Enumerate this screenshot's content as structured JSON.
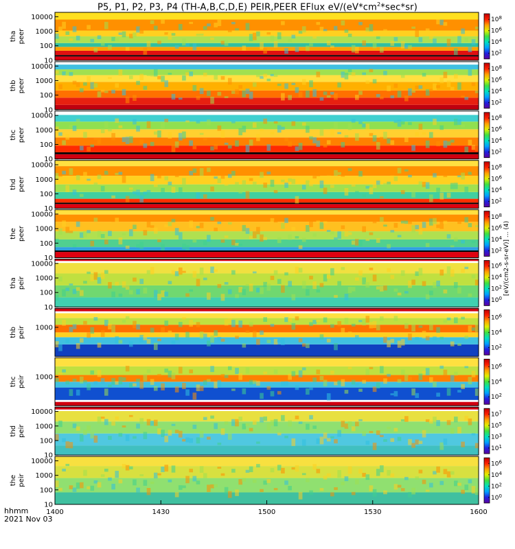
{
  "header": {
    "title": "P5, P1, P2, P3, P4 (TH-A,B,C,D,E) PEIR,PEER EFlux eV/(eV*cm",
    "title_sup": "2",
    "title_tail": "*sec*sr)"
  },
  "footer": {
    "time_format": "hhmm",
    "date": "2021 Nov 03"
  },
  "colorbar_unit": "[eV/(cm2-s-sr-eV)] ... (4)",
  "chart_data": {
    "type": "heatmap",
    "title": "P5, P1, P2, P3, P4 (TH-A,B,C,D,E) PEIR,PEER EFlux eV/(eV*cm2*sec*sr)",
    "x_axis": {
      "ticks": [
        "1400",
        "1430",
        "1500",
        "1530",
        "1600"
      ],
      "range": [
        "1400",
        "1600"
      ]
    },
    "y_scale": "log",
    "colormap": "rainbow (purple-blue-cyan-green-yellow-orange-red)",
    "panels": [
      {
        "probe": "tha",
        "species": "peer",
        "label": [
          "tha",
          "peer"
        ],
        "y_ticks": [
          "10",
          "100",
          "1000",
          "10000"
        ],
        "ylim": [
          10,
          20000
        ],
        "colorbar_ticks": [
          "10^2",
          "10^4",
          "10^6",
          "10^8"
        ],
        "bands": [
          {
            "from": 0.0,
            "to": 0.08,
            "color": "#d80010"
          },
          {
            "from": 0.08,
            "to": 0.11,
            "color": "#000000"
          },
          {
            "from": 0.11,
            "to": 0.2,
            "color": "#e01010"
          },
          {
            "from": 0.2,
            "to": 0.28,
            "color": "#ffa000"
          },
          {
            "from": 0.28,
            "to": 0.36,
            "color": "#30c0a0"
          },
          {
            "from": 0.36,
            "to": 0.5,
            "color": "#b0e050"
          },
          {
            "from": 0.5,
            "to": 0.62,
            "color": "#ffd020"
          },
          {
            "from": 0.62,
            "to": 0.85,
            "color": "#ff9000"
          },
          {
            "from": 0.85,
            "to": 1.0,
            "color": "#ffe020"
          }
        ]
      },
      {
        "probe": "thb",
        "species": "peer",
        "label": [
          "thb",
          "peer"
        ],
        "y_ticks": [
          "10",
          "100",
          "1000",
          "10000"
        ],
        "ylim": [
          10,
          20000
        ],
        "colorbar_ticks": [
          "10^2",
          "10^4",
          "10^6",
          "10^8"
        ],
        "bands": [
          {
            "from": 0.0,
            "to": 0.1,
            "color": "#c00010"
          },
          {
            "from": 0.1,
            "to": 0.25,
            "color": "#e82010"
          },
          {
            "from": 0.25,
            "to": 0.4,
            "color": "#ff7000"
          },
          {
            "from": 0.4,
            "to": 0.58,
            "color": "#ffb000"
          },
          {
            "from": 0.58,
            "to": 0.72,
            "color": "#ffe040"
          },
          {
            "from": 0.72,
            "to": 0.84,
            "color": "#a0e050"
          },
          {
            "from": 0.84,
            "to": 0.94,
            "color": "#40c0e0"
          },
          {
            "from": 0.94,
            "to": 1.0,
            "color": "#ffffff"
          }
        ]
      },
      {
        "probe": "thc",
        "species": "peer",
        "label": [
          "thc",
          "peer"
        ],
        "y_ticks": [
          "10",
          "100",
          "1000",
          "10000"
        ],
        "ylim": [
          10,
          20000
        ],
        "colorbar_ticks": [
          "10^2",
          "10^4",
          "10^6",
          "10^8"
        ],
        "bands": [
          {
            "from": 0.0,
            "to": 0.1,
            "color": "#d00010"
          },
          {
            "from": 0.1,
            "to": 0.14,
            "color": "#000000"
          },
          {
            "from": 0.14,
            "to": 0.28,
            "color": "#ff2a00"
          },
          {
            "from": 0.28,
            "to": 0.45,
            "color": "#ff8000"
          },
          {
            "from": 0.45,
            "to": 0.62,
            "color": "#ffd030"
          },
          {
            "from": 0.62,
            "to": 0.78,
            "color": "#90e050"
          },
          {
            "from": 0.78,
            "to": 0.92,
            "color": "#40d0d0"
          },
          {
            "from": 0.92,
            "to": 1.0,
            "color": "#ffffff"
          }
        ]
      },
      {
        "probe": "thd",
        "species": "peer",
        "label": [
          "thd",
          "peer"
        ],
        "y_ticks": [
          "10",
          "100",
          "1000",
          "10000"
        ],
        "ylim": [
          10,
          20000
        ],
        "colorbar_ticks": [
          "10^2",
          "10^4",
          "10^6",
          "10^8"
        ],
        "bands": [
          {
            "from": 0.0,
            "to": 0.09,
            "color": "#e00010"
          },
          {
            "from": 0.09,
            "to": 0.12,
            "color": "#000000"
          },
          {
            "from": 0.12,
            "to": 0.2,
            "color": "#ff3000"
          },
          {
            "from": 0.2,
            "to": 0.34,
            "color": "#40d0a0"
          },
          {
            "from": 0.34,
            "to": 0.5,
            "color": "#a0e050"
          },
          {
            "from": 0.5,
            "to": 0.68,
            "color": "#ffd020"
          },
          {
            "from": 0.68,
            "to": 0.88,
            "color": "#ff9000"
          },
          {
            "from": 0.88,
            "to": 1.0,
            "color": "#ffe040"
          }
        ]
      },
      {
        "probe": "the",
        "species": "peer",
        "label": [
          "the",
          "peer"
        ],
        "y_ticks": [
          "10",
          "100",
          "1000",
          "10000"
        ],
        "ylim": [
          10,
          20000
        ],
        "colorbar_ticks": [
          "10^2",
          "10^4",
          "10^6",
          "10^8"
        ],
        "bands": [
          {
            "from": 0.0,
            "to": 0.12,
            "color": "#e00010"
          },
          {
            "from": 0.12,
            "to": 0.15,
            "color": "#000000"
          },
          {
            "from": 0.15,
            "to": 0.22,
            "color": "#30a0e0"
          },
          {
            "from": 0.22,
            "to": 0.38,
            "color": "#50d090"
          },
          {
            "from": 0.38,
            "to": 0.55,
            "color": "#b0e050"
          },
          {
            "from": 0.55,
            "to": 0.75,
            "color": "#ffc020"
          },
          {
            "from": 0.75,
            "to": 0.9,
            "color": "#ff9000"
          },
          {
            "from": 0.9,
            "to": 1.0,
            "color": "#ffe040"
          }
        ]
      },
      {
        "probe": "tha",
        "species": "peir",
        "label": [
          "tha",
          "peir"
        ],
        "y_ticks": [
          "10",
          "100",
          "1000",
          "10000"
        ],
        "ylim": [
          10,
          20000
        ],
        "colorbar_ticks": [
          "10^0",
          "10^2",
          "10^4",
          "10^6"
        ],
        "bands": [
          {
            "from": 0.0,
            "to": 0.2,
            "color": "#40d0b0"
          },
          {
            "from": 0.2,
            "to": 0.45,
            "color": "#70d870"
          },
          {
            "from": 0.45,
            "to": 0.7,
            "color": "#c0e040"
          },
          {
            "from": 0.7,
            "to": 0.92,
            "color": "#f0e040"
          },
          {
            "from": 0.92,
            "to": 0.96,
            "color": "#ffffff"
          },
          {
            "from": 0.96,
            "to": 1.0,
            "color": "#d00010"
          }
        ]
      },
      {
        "probe": "thb",
        "species": "peir",
        "label": [
          "thb",
          "peir"
        ],
        "y_ticks": [
          "1000"
        ],
        "ylim": [
          10,
          20000
        ],
        "colorbar_ticks": [
          "10^2",
          "10^4",
          "10^6"
        ],
        "bands": [
          {
            "from": 0.0,
            "to": 0.25,
            "color": "#1040c0"
          },
          {
            "from": 0.25,
            "to": 0.4,
            "color": "#40c0e0"
          },
          {
            "from": 0.4,
            "to": 0.5,
            "color": "#ffd020"
          },
          {
            "from": 0.5,
            "to": 0.66,
            "color": "#ff7000"
          },
          {
            "from": 0.66,
            "to": 0.8,
            "color": "#c0e040"
          },
          {
            "from": 0.8,
            "to": 0.9,
            "color": "#ffe040"
          },
          {
            "from": 0.9,
            "to": 0.94,
            "color": "#ffffff"
          },
          {
            "from": 0.94,
            "to": 1.0,
            "color": "#d00010"
          }
        ]
      },
      {
        "probe": "thc",
        "species": "peir",
        "label": [
          "thc",
          "peir"
        ],
        "y_ticks": [
          "1000"
        ],
        "ylim": [
          10,
          20000
        ],
        "colorbar_ticks": [
          "10^2",
          "10^4",
          "10^6"
        ],
        "bands": [
          {
            "from": 0.0,
            "to": 0.08,
            "color": "#d00010"
          },
          {
            "from": 0.08,
            "to": 0.12,
            "color": "#ffffff"
          },
          {
            "from": 0.12,
            "to": 0.38,
            "color": "#1050d0"
          },
          {
            "from": 0.38,
            "to": 0.5,
            "color": "#40c0e0"
          },
          {
            "from": 0.5,
            "to": 0.64,
            "color": "#ff8000"
          },
          {
            "from": 0.64,
            "to": 0.82,
            "color": "#c0e040"
          },
          {
            "from": 0.82,
            "to": 1.0,
            "color": "#ffe040"
          }
        ]
      },
      {
        "probe": "thd",
        "species": "peir",
        "label": [
          "thd",
          "peir"
        ],
        "y_ticks": [
          "10",
          "100",
          "1000",
          "10000"
        ],
        "ylim": [
          10,
          20000
        ],
        "colorbar_ticks": [
          "10^1",
          "10^3",
          "10^5",
          "10^7"
        ],
        "bands": [
          {
            "from": 0.0,
            "to": 0.2,
            "color": "#40c0c0"
          },
          {
            "from": 0.2,
            "to": 0.45,
            "color": "#50c8e0"
          },
          {
            "from": 0.45,
            "to": 0.7,
            "color": "#90e070"
          },
          {
            "from": 0.7,
            "to": 0.92,
            "color": "#e8e040"
          },
          {
            "from": 0.92,
            "to": 0.95,
            "color": "#ffffff"
          },
          {
            "from": 0.95,
            "to": 1.0,
            "color": "#d00010"
          }
        ]
      },
      {
        "probe": "the",
        "species": "peir",
        "label": [
          "the",
          "peir"
        ],
        "y_ticks": [
          "10",
          "100",
          "1000",
          "10000"
        ],
        "ylim": [
          10,
          20000
        ],
        "colorbar_ticks": [
          "10^0",
          "10^2",
          "10^4",
          "10^6"
        ],
        "bands": [
          {
            "from": 0.0,
            "to": 0.25,
            "color": "#40c0a0"
          },
          {
            "from": 0.25,
            "to": 0.55,
            "color": "#90e070"
          },
          {
            "from": 0.55,
            "to": 0.8,
            "color": "#d8e040"
          },
          {
            "from": 0.8,
            "to": 1.0,
            "color": "#f8e040"
          }
        ]
      }
    ],
    "colorbar_gradient": [
      "#6000a0",
      "#2020e0",
      "#00a0ff",
      "#00e0c0",
      "#40e040",
      "#e0f000",
      "#ffa000",
      "#ff2000",
      "#c00000"
    ],
    "grid": false,
    "legend": "right (colorbar per panel)"
  }
}
